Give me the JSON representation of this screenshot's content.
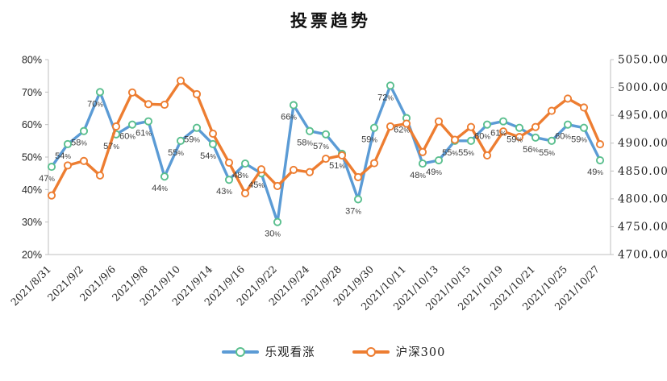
{
  "chart_data": {
    "type": "line",
    "title": "投票趋势",
    "point_count": 35,
    "x_tick_labels": [
      "2021/8/31",
      "2021/9/2",
      "2021/9/6",
      "2021/9/8",
      "2021/9/10",
      "2021/9/14",
      "2021/9/16",
      "2021/9/22",
      "2021/9/24",
      "2021/9/28",
      "2021/9/30",
      "2021/10/11",
      "2021/10/13",
      "2021/10/15",
      "2021/10/19",
      "2021/10/21",
      "2021/10/25",
      "2021/10/27"
    ],
    "x_tick_indices": [
      0,
      2,
      4,
      6,
      8,
      10,
      12,
      14,
      16,
      18,
      20,
      22,
      24,
      26,
      28,
      30,
      32,
      34
    ],
    "series": [
      {
        "name": "乐观看涨",
        "axis": "left",
        "line_color": "#5B9BD5",
        "marker_color": "#5ABF8E",
        "values": [
          47,
          54,
          58,
          70,
          57,
          60,
          61,
          44,
          55,
          59,
          54,
          43,
          48,
          45,
          30,
          66,
          58,
          57,
          51,
          37,
          59,
          72,
          62,
          48,
          49,
          55,
          55,
          60,
          61,
          59,
          56,
          55,
          60,
          59,
          49
        ],
        "data_labels": [
          "47%",
          "54%",
          "58%",
          "70%",
          "57%",
          "60%",
          "61%",
          "44%",
          "55%",
          "59%",
          "54%",
          "43%",
          "48%",
          "45%",
          "30%",
          "66%",
          "58%",
          "57%",
          "51%",
          "37%",
          "59%",
          "72%",
          "62%",
          "48%",
          "49%",
          "55%",
          "55%",
          "60%",
          "61%",
          "59%",
          "56%",
          "55%",
          "60%",
          "59%",
          "49%"
        ]
      },
      {
        "name": "沪深300",
        "axis": "right",
        "line_color": "#ED7D31",
        "marker_color": "#ED7D31",
        "values": [
          4806,
          4860,
          4868,
          4842,
          4930,
          4991,
          4970,
          4969,
          5012,
          4988,
          4917,
          4865,
          4810,
          4853,
          4823,
          4852,
          4848,
          4872,
          4878,
          4839,
          4864,
          4930,
          4935,
          4884,
          4939,
          4906,
          4929,
          4878,
          4921,
          4911,
          4929,
          4958,
          4980,
          4964,
          4898
        ]
      }
    ],
    "left_axis": {
      "min": 20,
      "max": 80,
      "tick_labels": [
        "80%",
        "70%",
        "60%",
        "50%",
        "40%",
        "30%",
        "20%"
      ]
    },
    "right_axis": {
      "min": 4700,
      "max": 5050,
      "tick_labels": [
        "5050.00",
        "5000.00",
        "4950.00",
        "4900.00",
        "4850.00",
        "4800.00",
        "4750.00",
        "4700.00"
      ]
    },
    "legend_position": "bottom",
    "grid": "off",
    "axis_color": "#BFBFBF",
    "data_label_color": "#3d3d3d"
  }
}
